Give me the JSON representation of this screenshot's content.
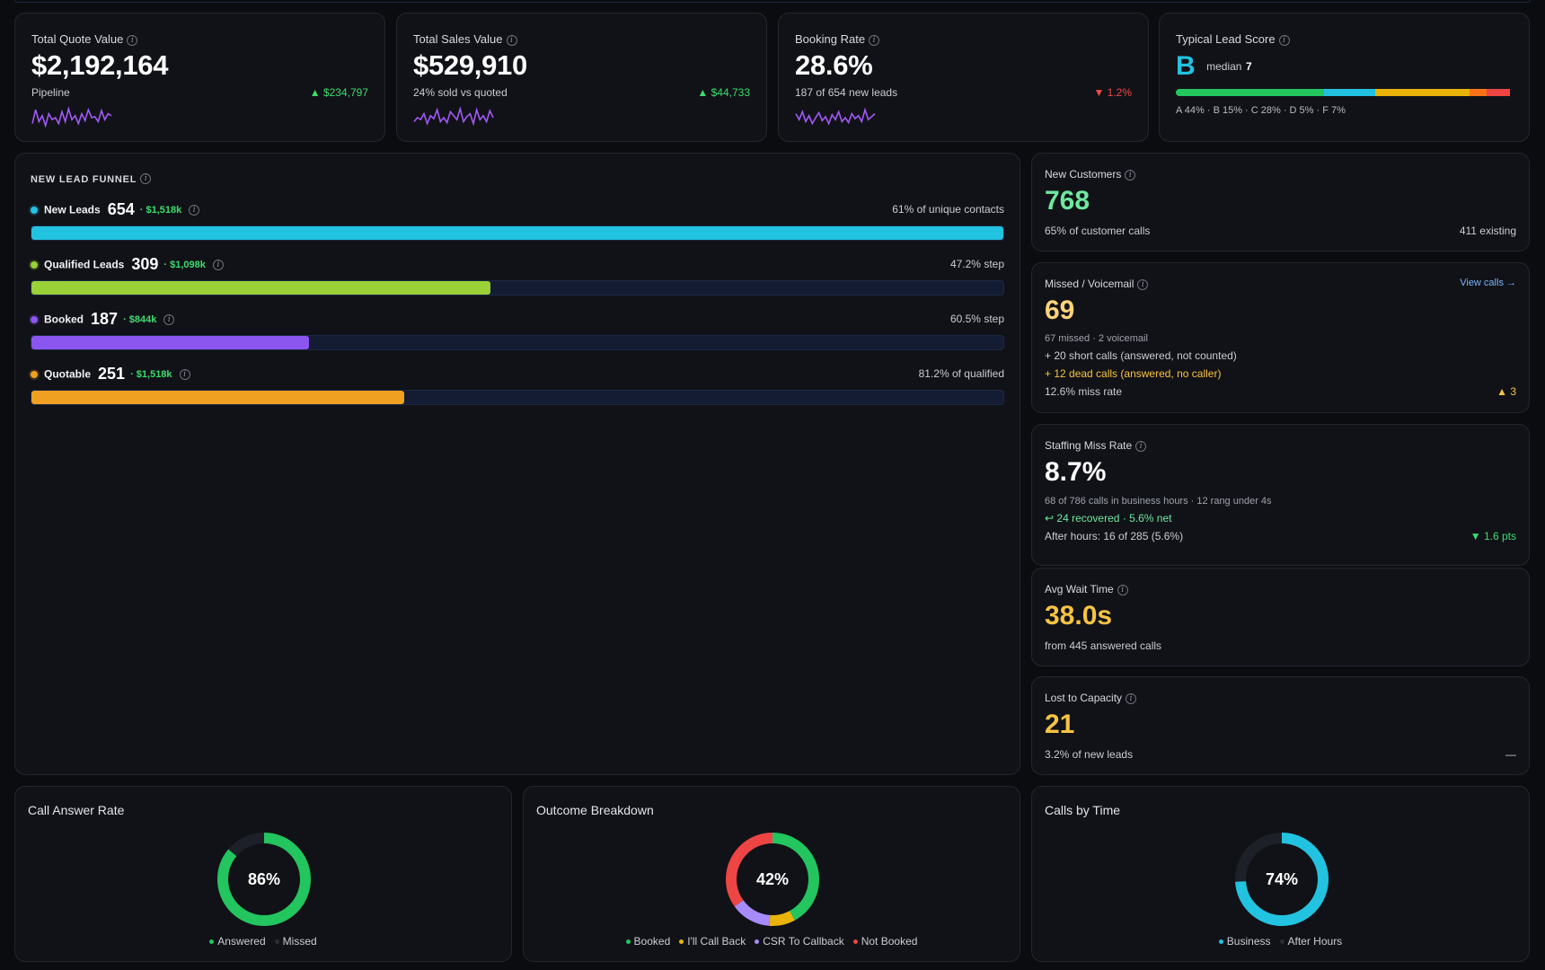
{
  "kpis": [
    {
      "label": "Total Quote Value",
      "value": "$2,192,164",
      "sub": "Pipeline",
      "delta": "▲ $234,797",
      "delta_dir": "up"
    },
    {
      "label": "Total Sales Value",
      "value": "$529,910",
      "sub": "24% sold vs quoted",
      "delta": "▲ $44,733",
      "delta_dir": "up"
    },
    {
      "label": "Booking Rate",
      "value": "28.6%",
      "sub": "187 of 654 new leads",
      "delta": "▼ 1.2%",
      "delta_dir": "down"
    }
  ],
  "lead_score": {
    "label": "Typical Lead Score",
    "grade": "B",
    "median_label": "median",
    "median_value": "7",
    "breakdown": "A 44% · B 15% · C 28% · D 5% · F 7%",
    "segments": [
      {
        "grade": "A",
        "pct": 44,
        "color": "#22c55e"
      },
      {
        "grade": "B",
        "pct": 15,
        "color": "#22c0e0"
      },
      {
        "grade": "C",
        "pct": 28,
        "color": "#eab308"
      },
      {
        "grade": "D",
        "pct": 5,
        "color": "#f97316"
      },
      {
        "grade": "F",
        "pct": 7,
        "color": "#ef4444"
      }
    ]
  },
  "funnel": {
    "title": "NEW LEAD FUNNEL",
    "stages": [
      {
        "name": "New Leads",
        "count": "654",
        "value": "· $1,518k",
        "right": "61% of unique contacts",
        "fill": 1.0,
        "color": "#22c3e0"
      },
      {
        "name": "Qualified Leads",
        "count": "309",
        "value": "· $1,098k",
        "right": "47.2% step",
        "fill": 0.472,
        "color": "#9ad038"
      },
      {
        "name": "Booked",
        "count": "187",
        "value": "· $844k",
        "right": "60.5% step",
        "fill": 0.286,
        "color": "#8b55f0"
      },
      {
        "name": "Quotable",
        "count": "251",
        "value": "· $1,518k",
        "right": "81.2% of qualified",
        "fill": 0.384,
        "color": "#f0a020"
      }
    ]
  },
  "new_customers": {
    "title": "New Customers",
    "value": "768",
    "sub": "65% of customer calls",
    "right": "411 existing"
  },
  "missed": {
    "title": "Missed / Voicemail",
    "link": "View calls →",
    "value": "69",
    "line1": "67 missed · 2 voicemail",
    "line2": "+ 20 short calls (answered, not counted)",
    "line3": "+ 12 dead calls (answered, no caller)",
    "line4": "12.6% miss rate",
    "delta": "▲ 3"
  },
  "staffing": {
    "title": "Staffing Miss Rate",
    "value": "8.7%",
    "line1": "68 of 786 calls in business hours · 12 rang under 4s",
    "line2": "↩ 24 recovered · 5.6% net",
    "line3": "After hours: 16 of 285 (5.6%)",
    "delta": "▼ 1.6 pts"
  },
  "wait": {
    "title": "Avg Wait Time",
    "value": "38.0s",
    "sub": "from 445 answered calls"
  },
  "lost": {
    "title": "Lost to Capacity",
    "value": "21",
    "sub": "3.2% of new leads",
    "right": "—"
  },
  "donuts": [
    {
      "title": "Call Answer Rate",
      "center": "86%",
      "segments": [
        {
          "name": "Answered",
          "pct": 86,
          "color": "#22c55e"
        },
        {
          "name": "Missed",
          "pct": 14,
          "color": "#1e2029"
        }
      ]
    },
    {
      "title": "Outcome Breakdown",
      "center": "42%",
      "segments": [
        {
          "name": "Booked",
          "pct": 42,
          "color": "#22c55e"
        },
        {
          "name": "I'll Call Back",
          "pct": 9,
          "color": "#eab308"
        },
        {
          "name": "CSR To Callback",
          "pct": 14,
          "color": "#a78bfa"
        },
        {
          "name": "Not Booked",
          "pct": 35,
          "color": "#ef4444"
        }
      ]
    },
    {
      "title": "Calls by Time",
      "center": "74%",
      "segments": [
        {
          "name": "Business",
          "pct": 74,
          "color": "#22c3e0"
        },
        {
          "name": "After Hours",
          "pct": 26,
          "color": "#1e2029"
        }
      ]
    }
  ]
}
